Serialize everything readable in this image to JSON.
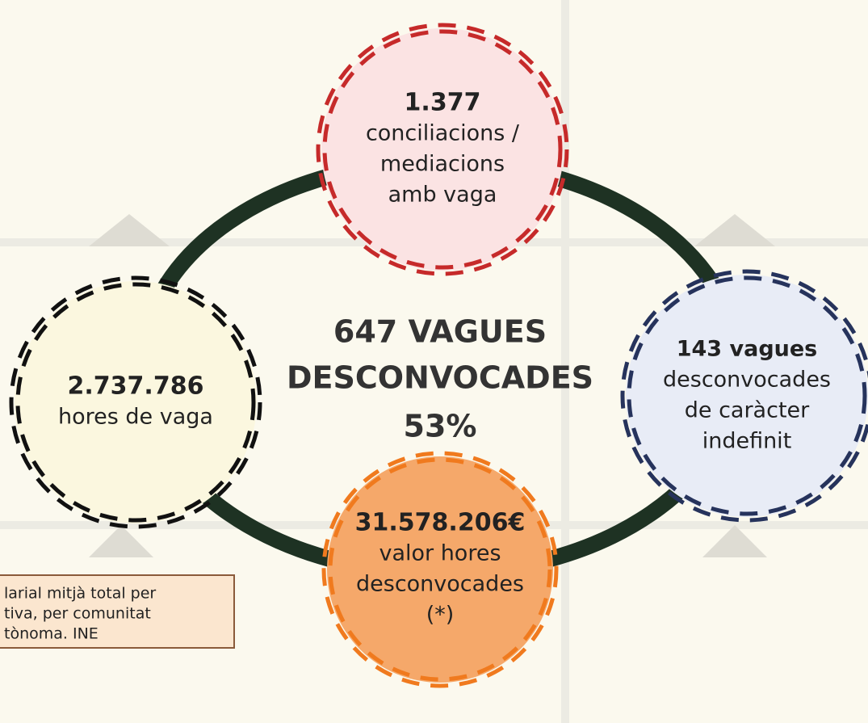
{
  "center": {
    "lines": [
      "647 VAGUES",
      "DESCONVOCADES",
      "53%"
    ]
  },
  "nodes": [
    {
      "value": "1.377",
      "lines": [
        "conciliacions /",
        "mediacions",
        "amb vaga"
      ]
    },
    {
      "value": "2.737.786",
      "lines": [
        "hores de vaga"
      ]
    },
    {
      "value": "143 vagues",
      "lines": [
        "desconvocades",
        "de caràcter",
        "indefinit"
      ]
    },
    {
      "value": "31.578.206€",
      "lines": [
        "valor hores",
        "desconvocades",
        "(*)"
      ]
    }
  ],
  "note": {
    "lines": [
      "larial mitjà total per",
      "tiva, per comunitat",
      "tònoma. INE"
    ]
  }
}
